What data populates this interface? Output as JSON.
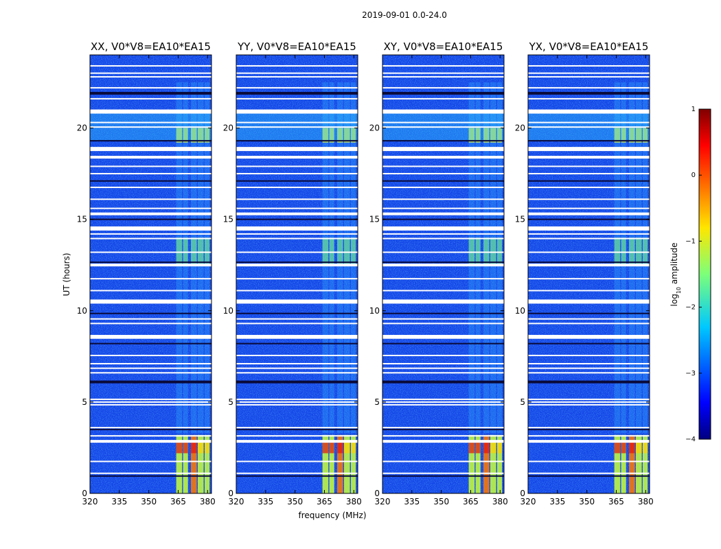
{
  "chart_data": {
    "type": "heatmap",
    "suptitle": "2019-09-01 0.0-24.0",
    "xlabel": "frequency (MHz)",
    "ylabel": "UT (hours)",
    "xlim": [
      320,
      382
    ],
    "ylim": [
      0,
      24
    ],
    "x_ticks": [
      "320",
      "335",
      "350",
      "365",
      "380"
    ],
    "y_ticks": [
      "0",
      "5",
      "10",
      "15",
      "20"
    ],
    "panels": [
      {
        "title": "XX, V0*V8=EA10*EA15",
        "polarization": "XX"
      },
      {
        "title": "YY, V0*V8=EA10*EA15",
        "polarization": "YY"
      },
      {
        "title": "XY, V0*V8=EA10*EA15",
        "polarization": "XY"
      },
      {
        "title": "YX, V0*V8=EA10*EA15",
        "polarization": "YX"
      }
    ],
    "colorbar": {
      "label_prefix": "log",
      "label_sub": "10",
      "label_suffix": " amplitude",
      "range": [
        -4,
        1
      ],
      "ticks": [
        "1",
        "0",
        "−1",
        "−2",
        "−3",
        "−4"
      ],
      "colormap": "jet"
    },
    "flagged_hours": [
      0.95,
      1.1,
      1.75,
      2.85,
      3.15,
      3.5,
      3.6,
      4.85,
      5.0,
      5.15,
      6.1,
      6.6,
      6.85,
      7.1,
      7.55,
      8.2,
      8.5,
      8.6,
      9.3,
      9.55,
      9.85,
      10.55,
      11.1,
      11.75,
      12.5,
      12.65,
      13.2,
      13.95,
      14.2,
      14.5,
      15.0,
      15.3,
      15.6,
      16.1,
      16.75,
      17.1,
      17.5,
      17.9,
      18.4,
      18.9,
      19.3,
      20.05,
      20.3,
      20.9,
      21.6,
      21.9,
      22.2,
      22.8,
      23.0,
      23.4
    ]
  }
}
